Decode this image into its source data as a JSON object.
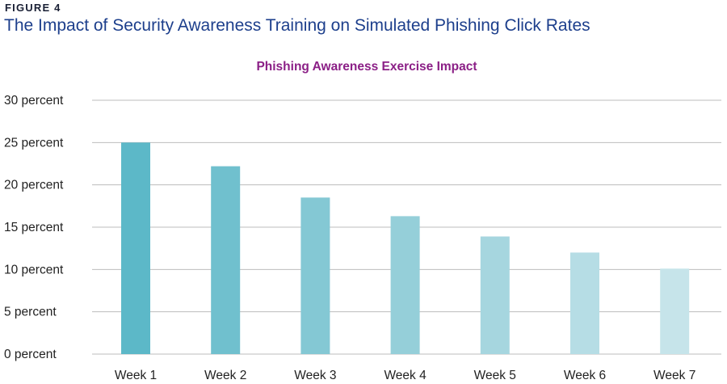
{
  "figure": {
    "label": "FIGURE 4",
    "title": "The Impact of Security Awareness Training on Simulated Phishing Click Rates"
  },
  "chart_data": {
    "type": "bar",
    "title": "Phishing Awareness Exercise Impact",
    "xlabel": "",
    "ylabel": "",
    "categories": [
      "Week 1",
      "Week 2",
      "Week 3",
      "Week 4",
      "Week 5",
      "Week 6",
      "Week 7"
    ],
    "values": [
      25,
      22.2,
      18.5,
      16.3,
      13.9,
      12,
      10.1
    ],
    "ylim": [
      0,
      30
    ],
    "yticks": [
      0,
      5,
      10,
      15,
      20,
      25,
      30
    ],
    "ytick_labels": [
      "0 percent",
      "5 percent",
      "10 percent",
      "15 percent",
      "20 percent",
      "25 percent",
      "30 percent"
    ],
    "grid": true,
    "legend": "none",
    "bar_colors": [
      "#5cb8c8",
      "#70c0ce",
      "#84c8d4",
      "#95cfd9",
      "#a6d6df",
      "#b6dde5",
      "#c6e4ea"
    ]
  }
}
